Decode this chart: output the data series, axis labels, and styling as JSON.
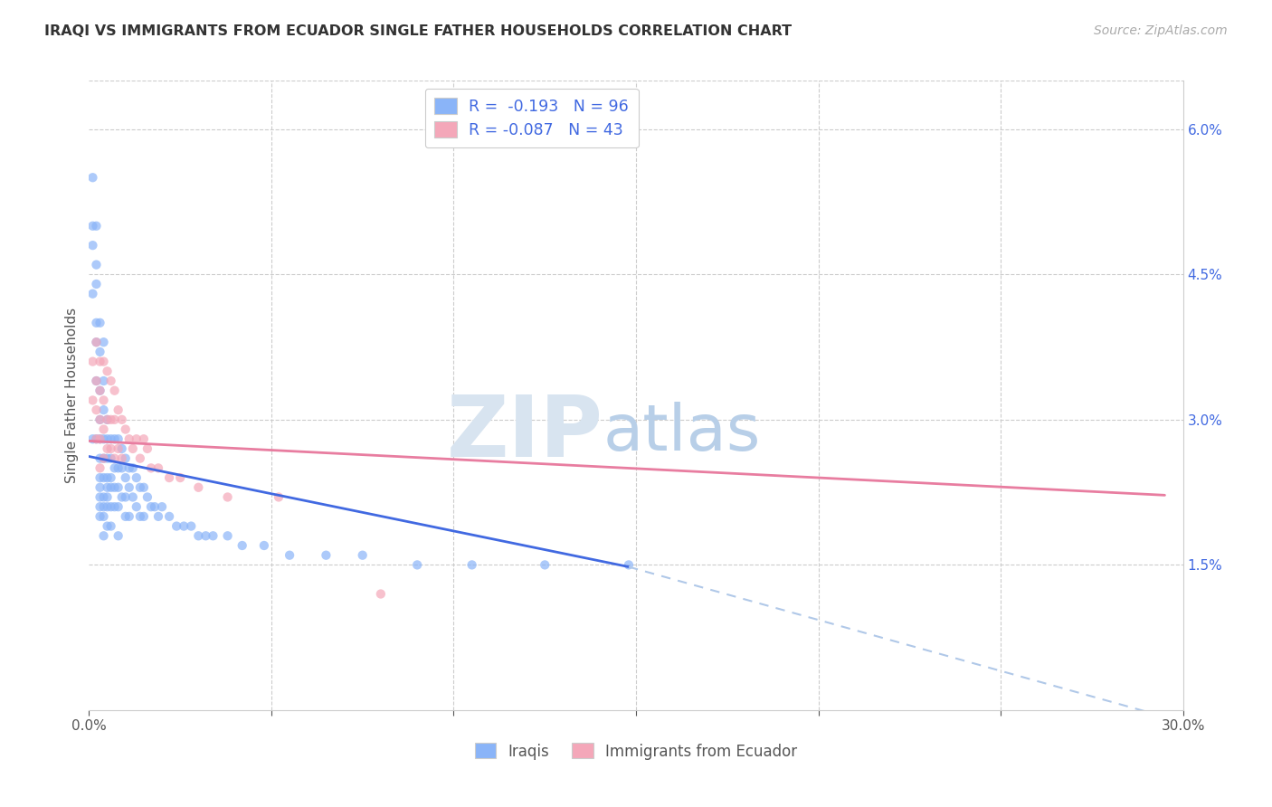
{
  "title": "IRAQI VS IMMIGRANTS FROM ECUADOR SINGLE FATHER HOUSEHOLDS CORRELATION CHART",
  "source": "Source: ZipAtlas.com",
  "ylabel": "Single Father Households",
  "legend_label1": "Iraqis",
  "legend_label2": "Immigrants from Ecuador",
  "r1": -0.193,
  "n1": 96,
  "r2": -0.087,
  "n2": 43,
  "xlim": [
    0.0,
    0.3
  ],
  "ylim": [
    0.0,
    0.065
  ],
  "xticks": [
    0.0,
    0.05,
    0.1,
    0.15,
    0.2,
    0.25,
    0.3
  ],
  "xticklabels": [
    "0.0%",
    "",
    "",
    "",
    "",
    "",
    "30.0%"
  ],
  "color_iraqi": "#8ab4f8",
  "color_ecuador": "#f4a7b9",
  "color_trend_iraqi": "#4169e1",
  "color_trend_ecuador": "#e87da0",
  "color_trend_extrapolate": "#b0c8e8",
  "watermark_zip": "ZIP",
  "watermark_atlas": "atlas",
  "watermark_color_zip": "#d8e4f0",
  "watermark_color_atlas": "#b8cfe8",
  "background_color": "#ffffff",
  "grid_color": "#cccccc",
  "trend_iraqi_x0": 0.0,
  "trend_iraqi_y0": 0.0262,
  "trend_iraqi_x1": 0.148,
  "trend_iraqi_y1": 0.0148,
  "trend_ecuador_x0": 0.0,
  "trend_ecuador_y0": 0.0278,
  "trend_ecuador_x1": 0.295,
  "trend_ecuador_y1": 0.0222,
  "trend_iraqi_dash_x0": 0.148,
  "trend_iraqi_dash_y0": 0.0148,
  "trend_iraqi_dash_x1": 0.298,
  "trend_iraqi_dash_y1": -0.001,
  "iraqi_x": [
    0.001,
    0.001,
    0.001,
    0.001,
    0.001,
    0.002,
    0.002,
    0.002,
    0.002,
    0.002,
    0.002,
    0.002,
    0.003,
    0.003,
    0.003,
    0.003,
    0.003,
    0.003,
    0.003,
    0.003,
    0.003,
    0.003,
    0.003,
    0.004,
    0.004,
    0.004,
    0.004,
    0.004,
    0.004,
    0.004,
    0.004,
    0.004,
    0.004,
    0.005,
    0.005,
    0.005,
    0.005,
    0.005,
    0.005,
    0.005,
    0.005,
    0.006,
    0.006,
    0.006,
    0.006,
    0.006,
    0.006,
    0.007,
    0.007,
    0.007,
    0.007,
    0.008,
    0.008,
    0.008,
    0.008,
    0.008,
    0.009,
    0.009,
    0.009,
    0.01,
    0.01,
    0.01,
    0.01,
    0.011,
    0.011,
    0.011,
    0.012,
    0.012,
    0.013,
    0.013,
    0.014,
    0.014,
    0.015,
    0.015,
    0.016,
    0.017,
    0.018,
    0.019,
    0.02,
    0.022,
    0.024,
    0.026,
    0.028,
    0.03,
    0.032,
    0.034,
    0.038,
    0.042,
    0.048,
    0.055,
    0.065,
    0.075,
    0.09,
    0.105,
    0.125,
    0.148
  ],
  "iraqi_y": [
    0.055,
    0.05,
    0.048,
    0.043,
    0.028,
    0.05,
    0.046,
    0.044,
    0.04,
    0.038,
    0.034,
    0.028,
    0.04,
    0.037,
    0.033,
    0.03,
    0.028,
    0.026,
    0.024,
    0.023,
    0.022,
    0.021,
    0.02,
    0.038,
    0.034,
    0.031,
    0.028,
    0.026,
    0.024,
    0.022,
    0.021,
    0.02,
    0.018,
    0.03,
    0.028,
    0.026,
    0.024,
    0.023,
    0.022,
    0.021,
    0.019,
    0.028,
    0.026,
    0.024,
    0.023,
    0.021,
    0.019,
    0.028,
    0.025,
    0.023,
    0.021,
    0.028,
    0.025,
    0.023,
    0.021,
    0.018,
    0.027,
    0.025,
    0.022,
    0.026,
    0.024,
    0.022,
    0.02,
    0.025,
    0.023,
    0.02,
    0.025,
    0.022,
    0.024,
    0.021,
    0.023,
    0.02,
    0.023,
    0.02,
    0.022,
    0.021,
    0.021,
    0.02,
    0.021,
    0.02,
    0.019,
    0.019,
    0.019,
    0.018,
    0.018,
    0.018,
    0.018,
    0.017,
    0.017,
    0.016,
    0.016,
    0.016,
    0.015,
    0.015,
    0.015,
    0.015
  ],
  "ecuador_x": [
    0.001,
    0.001,
    0.002,
    0.002,
    0.002,
    0.002,
    0.003,
    0.003,
    0.003,
    0.003,
    0.003,
    0.004,
    0.004,
    0.004,
    0.004,
    0.005,
    0.005,
    0.005,
    0.006,
    0.006,
    0.006,
    0.007,
    0.007,
    0.007,
    0.008,
    0.008,
    0.009,
    0.009,
    0.01,
    0.011,
    0.012,
    0.013,
    0.014,
    0.015,
    0.016,
    0.017,
    0.019,
    0.022,
    0.025,
    0.03,
    0.038,
    0.052,
    0.08
  ],
  "ecuador_y": [
    0.036,
    0.032,
    0.038,
    0.034,
    0.031,
    0.028,
    0.036,
    0.033,
    0.03,
    0.028,
    0.025,
    0.036,
    0.032,
    0.029,
    0.026,
    0.035,
    0.03,
    0.027,
    0.034,
    0.03,
    0.027,
    0.033,
    0.03,
    0.026,
    0.031,
    0.027,
    0.03,
    0.026,
    0.029,
    0.028,
    0.027,
    0.028,
    0.026,
    0.028,
    0.027,
    0.025,
    0.025,
    0.024,
    0.024,
    0.023,
    0.022,
    0.022,
    0.012
  ]
}
